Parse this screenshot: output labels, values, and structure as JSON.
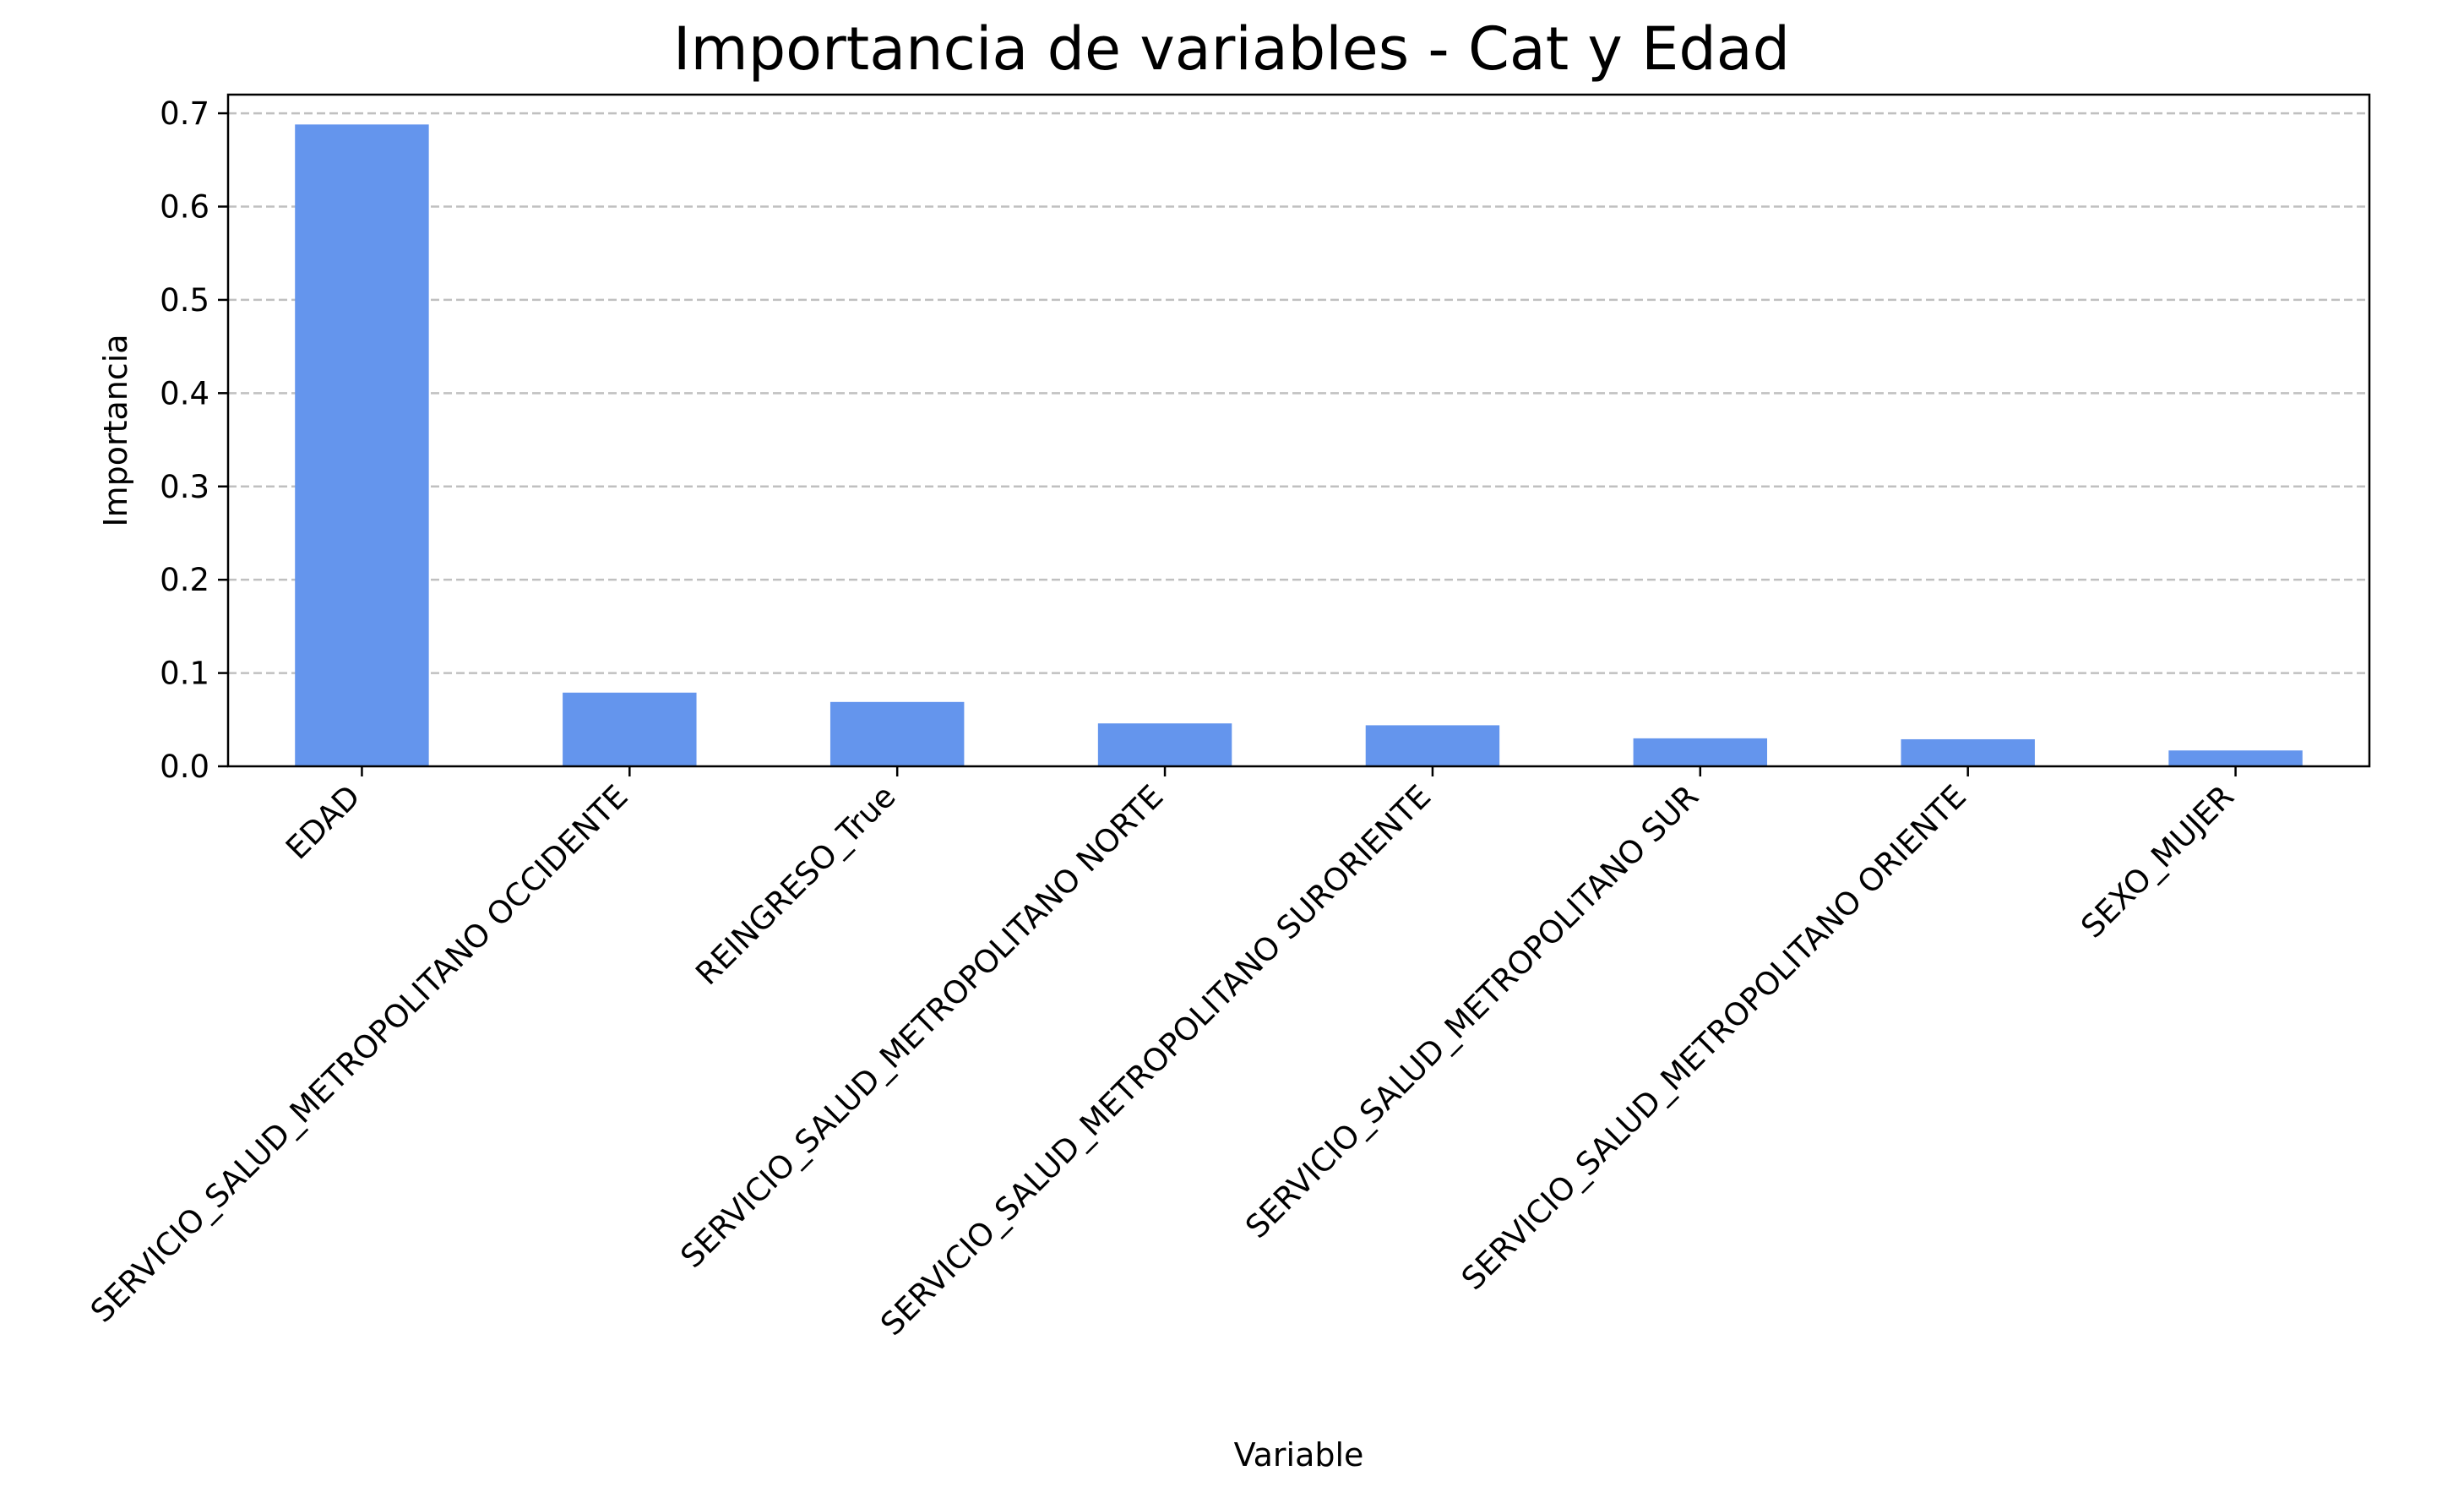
{
  "chart_data": {
    "type": "bar",
    "title": "Importancia de variables - Cat y Edad",
    "xlabel": "Variable",
    "ylabel": "Importancia",
    "categories": [
      "EDAD",
      "SERVICIO_SALUD_METROPOLITANO OCCIDENTE",
      "REINGRESO_True",
      "SERVICIO_SALUD_METROPOLITANO NORTE",
      "SERVICIO_SALUD_METROPOLITANO SURORIENTE",
      "SERVICIO_SALUD_METROPOLITANO SUR",
      "SERVICIO_SALUD_METROPOLITANO ORIENTE",
      "SEXO_MUJER"
    ],
    "values": [
      0.688,
      0.079,
      0.069,
      0.046,
      0.044,
      0.03,
      0.029,
      0.017
    ],
    "ylim": [
      0,
      0.72
    ],
    "yticks": [
      "0.0",
      "0.1",
      "0.2",
      "0.3",
      "0.4",
      "0.5",
      "0.6",
      "0.7"
    ],
    "grid": "y-dashed",
    "legend": "none",
    "colors": {
      "bar": "#6495ED",
      "grid": "#c0c0c0",
      "axis": "#000000"
    }
  }
}
